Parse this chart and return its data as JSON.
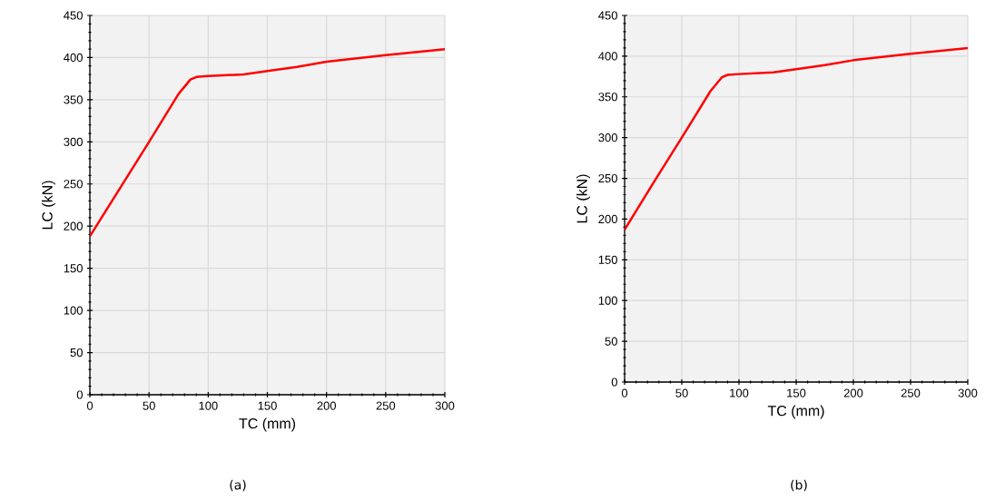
{
  "chart_data": [
    {
      "type": "line",
      "xlabel": "TC (mm)",
      "ylabel": "LC (kN)",
      "annotations": [
        "(a)"
      ],
      "xlim": [
        0,
        300
      ],
      "ylim": [
        0,
        450
      ],
      "xticks": [
        0,
        50,
        100,
        150,
        200,
        250,
        300
      ],
      "yticks": [
        0,
        50,
        100,
        150,
        200,
        250,
        300,
        350,
        400,
        450
      ],
      "grid": true,
      "series": [
        {
          "color": "#ff0000",
          "x": [
            0,
            25,
            50,
            75,
            85,
            90,
            100,
            130,
            150,
            175,
            200,
            250,
            300
          ],
          "values": [
            188,
            244,
            300,
            357,
            374,
            377,
            378,
            380,
            384,
            389,
            395,
            403,
            410
          ]
        }
      ]
    },
    {
      "type": "line",
      "xlabel": "TC (mm)",
      "ylabel": "LC (kN)",
      "annotations": [
        "(b)"
      ],
      "xlim": [
        0,
        300
      ],
      "ylim": [
        0,
        450
      ],
      "xticks": [
        0,
        50,
        100,
        150,
        200,
        250,
        300
      ],
      "yticks": [
        0,
        50,
        100,
        150,
        200,
        250,
        300,
        350,
        400,
        450
      ],
      "grid": true,
      "series": [
        {
          "color": "#ff0000",
          "x": [
            0,
            25,
            50,
            75,
            85,
            90,
            100,
            130,
            150,
            175,
            200,
            250,
            300
          ],
          "values": [
            187,
            244,
            300,
            357,
            374,
            377,
            378,
            380,
            384,
            389,
            395,
            403,
            410
          ]
        }
      ]
    }
  ]
}
